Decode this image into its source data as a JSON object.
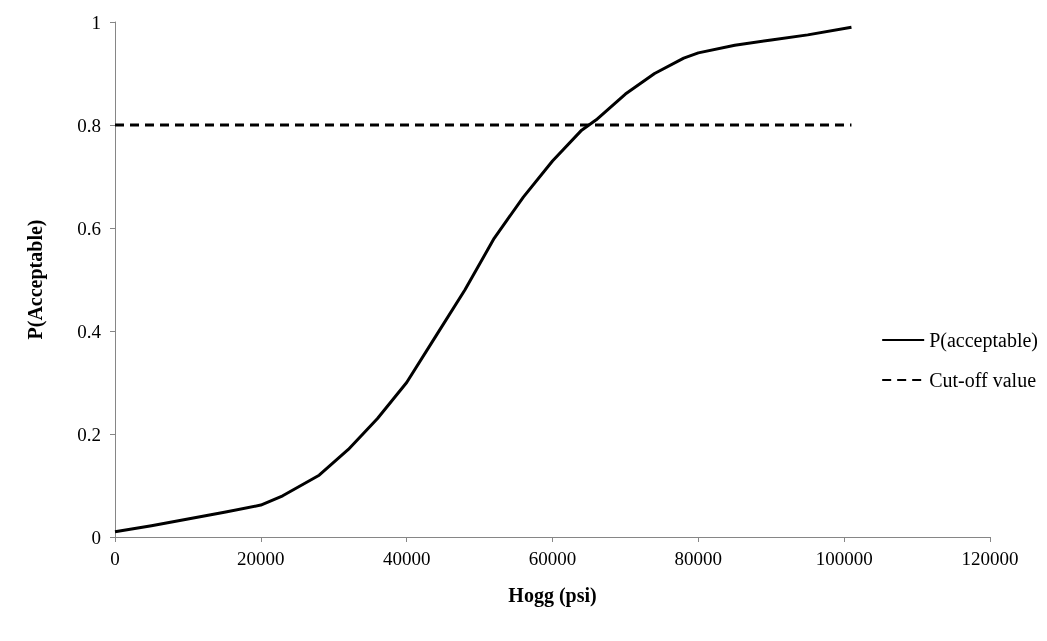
{
  "chart_data": {
    "type": "line",
    "xlabel": "Hogg (psi)",
    "ylabel": "P(Acceptable)",
    "xlim": [
      0,
      120000
    ],
    "xticks": [
      0,
      20000,
      40000,
      60000,
      80000,
      100000,
      120000
    ],
    "ylim": [
      0,
      1
    ],
    "yticks": [
      0,
      0.2,
      0.4,
      0.6,
      0.8,
      1
    ],
    "grid": false,
    "legend": "right",
    "marker": "none",
    "series": [
      {
        "name": "P(acceptable)",
        "color": "#000000",
        "line_style": "solid",
        "x": [
          0,
          5000,
          10000,
          15000,
          20000,
          23000,
          28000,
          32000,
          36000,
          40000,
          44000,
          48000,
          52000,
          56000,
          60000,
          64000,
          66000,
          70000,
          74000,
          78000,
          80000,
          85000,
          90000,
          95000,
          101000
        ],
        "values": [
          0.01,
          0.022,
          0.035,
          0.048,
          0.062,
          0.08,
          0.12,
          0.17,
          0.23,
          0.3,
          0.39,
          0.48,
          0.58,
          0.66,
          0.73,
          0.79,
          0.81,
          0.86,
          0.9,
          0.93,
          0.94,
          0.955,
          0.965,
          0.975,
          0.99
        ]
      },
      {
        "name": "Cut-off value",
        "color": "#000000",
        "line_style": "dashed",
        "x": [
          0,
          101000
        ],
        "values": [
          0.8,
          0.8
        ]
      }
    ]
  }
}
